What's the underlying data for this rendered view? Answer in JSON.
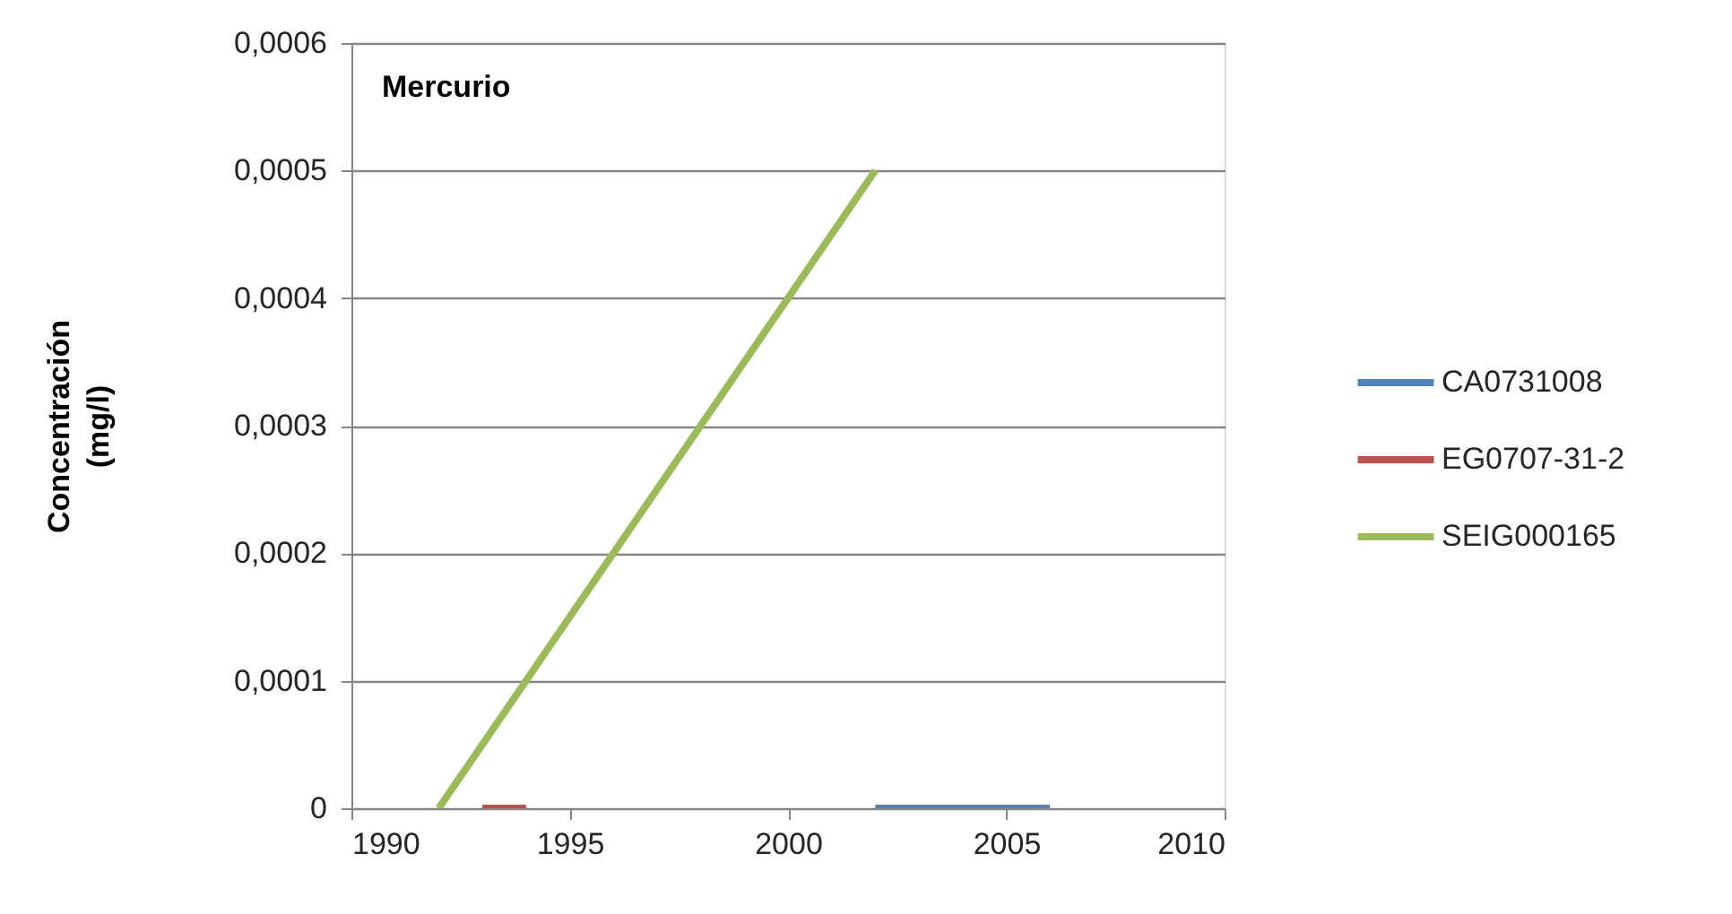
{
  "chart_data": {
    "type": "line",
    "title": "Mercurio",
    "ylabel": "Concentración\n(mg/l)",
    "series": [
      {
        "name": "CA0731008",
        "color": "#4f81bd",
        "x": [
          2002,
          2006
        ],
        "values": [
          0,
          0
        ]
      },
      {
        "name": "EG0707-31-2",
        "color": "#c0504d",
        "x": [
          1993,
          1994
        ],
        "values": [
          0,
          0
        ]
      },
      {
        "name": "SEIG000165",
        "color": "#9bbb59",
        "x": [
          1992,
          2002
        ],
        "values": [
          0,
          0.0005
        ]
      }
    ],
    "xlim": [
      1990,
      2010
    ],
    "xticks": [
      1990,
      1995,
      2000,
      2005,
      2010
    ],
    "ylim": [
      0,
      0.0006
    ],
    "yticks": [
      0,
      {
        "value": 0.0001,
        "label": "0,0001"
      },
      {
        "value": 0.0002,
        "label": "0,0002"
      },
      {
        "value": 0.0003,
        "label": "0,0003"
      },
      {
        "value": 0.0004,
        "label": "0,0004"
      },
      {
        "value": 0.0005,
        "label": "0,0005"
      },
      {
        "value": 0.0006,
        "label": "0,0006"
      }
    ],
    "grid": "y",
    "legend": "right"
  }
}
